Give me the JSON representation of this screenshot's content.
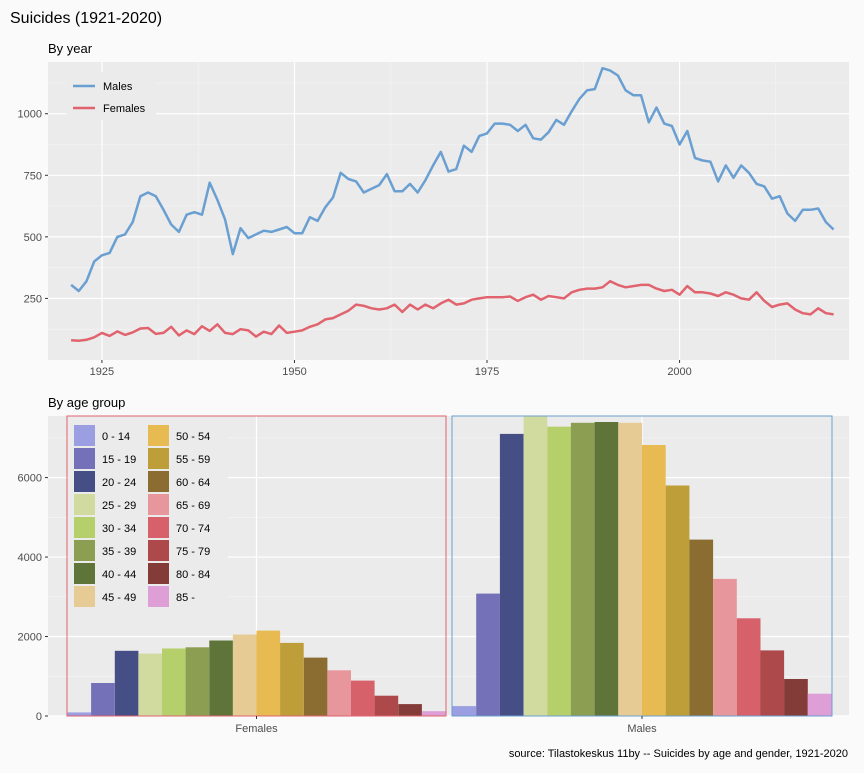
{
  "title": "Suicides (1921-2020)",
  "caption": "source: Tilastokeskus 11by -- Suicides by age and gender, 1921-2020",
  "chart_data": [
    {
      "type": "line",
      "subtitle": "By year",
      "xlabel": "",
      "ylabel": "",
      "xlim": [
        1918,
        2022
      ],
      "ylim": [
        0,
        1210
      ],
      "x_ticks": [
        1925,
        1950,
        1975,
        2000
      ],
      "y_ticks": [
        250,
        500,
        750,
        1000
      ],
      "grid": true,
      "legend_position": "top-left",
      "series": [
        {
          "name": "Males",
          "color": "#6a9fd2",
          "x_start": 1921,
          "values": [
            305,
            280,
            320,
            400,
            425,
            435,
            500,
            510,
            560,
            665,
            680,
            665,
            610,
            550,
            520,
            590,
            600,
            590,
            720,
            650,
            570,
            430,
            535,
            495,
            510,
            525,
            520,
            530,
            540,
            515,
            515,
            580,
            565,
            620,
            660,
            760,
            735,
            725,
            680,
            695,
            710,
            755,
            685,
            685,
            715,
            680,
            730,
            790,
            845,
            765,
            775,
            870,
            845,
            910,
            920,
            960,
            960,
            955,
            930,
            955,
            900,
            895,
            925,
            975,
            955,
            1010,
            1060,
            1095,
            1100,
            1185,
            1175,
            1155,
            1095,
            1075,
            1075,
            965,
            1025,
            960,
            950,
            875,
            930,
            820,
            810,
            805,
            725,
            790,
            740,
            790,
            760,
            715,
            705,
            655,
            665,
            595,
            565,
            610,
            610,
            615,
            560,
            530
          ]
        },
        {
          "name": "Females",
          "color": "#e0636e",
          "x_start": 1921,
          "values": [
            80,
            78,
            82,
            92,
            110,
            98,
            116,
            102,
            112,
            128,
            130,
            106,
            110,
            135,
            100,
            120,
            105,
            137,
            118,
            145,
            110,
            105,
            125,
            120,
            95,
            115,
            105,
            140,
            110,
            115,
            120,
            135,
            145,
            165,
            170,
            185,
            200,
            225,
            220,
            210,
            205,
            210,
            225,
            195,
            225,
            205,
            225,
            210,
            230,
            245,
            225,
            230,
            245,
            250,
            255,
            255,
            255,
            258,
            240,
            255,
            265,
            245,
            260,
            255,
            250,
            275,
            285,
            290,
            290,
            295,
            320,
            305,
            295,
            300,
            305,
            305,
            290,
            280,
            285,
            265,
            300,
            275,
            275,
            270,
            260,
            275,
            265,
            250,
            245,
            275,
            240,
            215,
            225,
            230,
            205,
            190,
            185,
            210,
            190,
            185
          ]
        }
      ]
    },
    {
      "type": "bar",
      "subtitle": "By age group",
      "xlabel": "",
      "ylabel": "",
      "ylim": [
        0,
        7550
      ],
      "y_ticks": [
        0,
        2000,
        4000,
        6000
      ],
      "grid": true,
      "legend_position": "top-left",
      "categories": [
        "0 - 14",
        "15 - 19",
        "20 - 24",
        "25 - 29",
        "30 - 34",
        "35 - 39",
        "40 - 44",
        "45 - 49",
        "50 - 54",
        "55 - 59",
        "60 - 64",
        "65 - 69",
        "70 - 74",
        "75 - 79",
        "80 - 84",
        "85 -"
      ],
      "colors": [
        "#9b9ee0",
        "#7471b8",
        "#454e85",
        "#d1dba0",
        "#b5cf6b",
        "#8c9e52",
        "#5f7438",
        "#e7cb94",
        "#e7ba52",
        "#bd9e39",
        "#8c6d31",
        "#e7969c",
        "#d6616b",
        "#ad494a",
        "#843c39",
        "#de9ed6"
      ],
      "series": [
        {
          "name": "Females",
          "border_color": "#e0636e",
          "values": [
            90,
            830,
            1640,
            1570,
            1700,
            1730,
            1900,
            2050,
            2150,
            1840,
            1470,
            1150,
            890,
            510,
            300,
            120
          ]
        },
        {
          "name": "Males",
          "border_color": "#6a9fd2",
          "values": [
            250,
            3080,
            7100,
            7560,
            7280,
            7380,
            7400,
            7380,
            6820,
            5800,
            4440,
            3450,
            2460,
            1650,
            930,
            560
          ]
        }
      ]
    }
  ]
}
